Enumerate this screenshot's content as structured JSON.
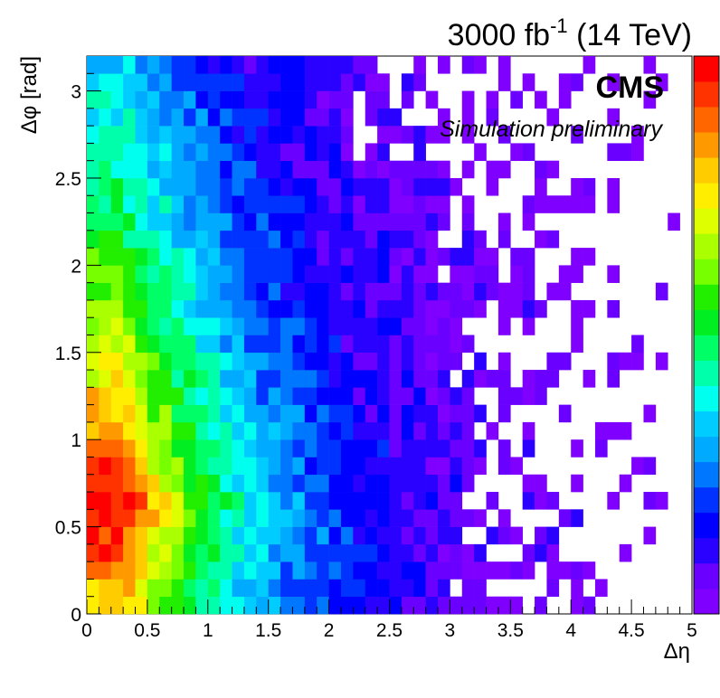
{
  "header": {
    "lumi_main": "3000 fb",
    "lumi_exp": "-1",
    "lumi_energy": " (14 TeV)"
  },
  "labels": {
    "experiment": "CMS",
    "status": "Simulation preliminary"
  },
  "chart_data": {
    "type": "heatmap",
    "title": "",
    "xlabel": "Δη",
    "ylabel": "Δφ [rad]",
    "xlim": [
      0,
      5
    ],
    "ylim": [
      0,
      3.2
    ],
    "x_bins": 50,
    "y_bins": 32,
    "x_ticks": [
      "0",
      "0.5",
      "1",
      "1.5",
      "2",
      "2.5",
      "3",
      "3.5",
      "4",
      "4.5",
      "5"
    ],
    "y_ticks": [
      "0",
      "0.5",
      "1",
      "1.5",
      "2",
      "2.5",
      "3"
    ],
    "colorbar": {
      "palette": [
        "#7f00ff",
        "#6a00ff",
        "#2a00ff",
        "#0000ff",
        "#0033ff",
        "#0077ff",
        "#00aaff",
        "#00ccff",
        "#00ffee",
        "#00ffaa",
        "#00ff66",
        "#00ee22",
        "#22ee00",
        "#77ff00",
        "#aaff00",
        "#ddff00",
        "#ffee00",
        "#ffcc00",
        "#ff9900",
        "#ff6600",
        "#ff3300",
        "#ff0000"
      ],
      "range": [
        0,
        1
      ]
    },
    "density_model": {
      "description": "relative density highest at small Δη and small Δφ, decreasing with Δη and Δφ",
      "peak": {
        "deta": 0.3,
        "dphi": 0.6,
        "level": 1.0
      },
      "deta_scale": 1.15,
      "dphi_scale": 2.4,
      "sparse_edge_deta": 3.3,
      "max_deta": 4.9
    }
  }
}
